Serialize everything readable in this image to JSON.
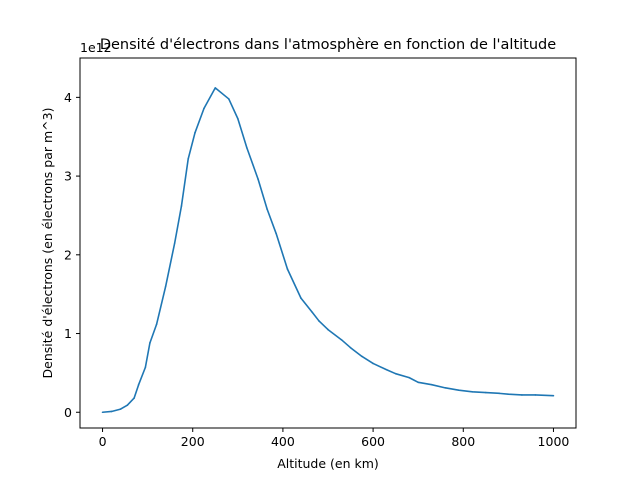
{
  "chart_data": {
    "type": "line",
    "title": "Densité d'électrons dans l'atmosphère en fonction de l'altitude",
    "xlabel": "Altitude (en km)",
    "ylabel": "Densité d'électrons (en électrons par m^3)",
    "y_offset_label": "1e12",
    "xlim": [
      -50,
      1050
    ],
    "ylim": [
      -0.2,
      4.5
    ],
    "y_scale_note": "values in units of 1e12",
    "x_ticks": [
      0,
      200,
      400,
      600,
      800,
      1000
    ],
    "y_ticks": [
      0,
      1,
      2,
      3,
      4
    ],
    "grid": false,
    "legend": "none",
    "series": [
      {
        "color": "#1f77b4",
        "x": [
          0,
          20,
          40,
          55,
          70,
          80,
          95,
          105,
          120,
          140,
          160,
          175,
          190,
          205,
          225,
          250,
          280,
          300,
          320,
          345,
          365,
          385,
          410,
          440,
          465,
          480,
          500,
          530,
          550,
          575,
          600,
          630,
          650,
          680,
          700,
          730,
          760,
          790,
          820,
          850,
          880,
          900,
          930,
          960,
          1000
        ],
        "y": [
          0.0,
          0.01,
          0.04,
          0.09,
          0.18,
          0.35,
          0.57,
          0.88,
          1.12,
          1.6,
          2.15,
          2.62,
          3.22,
          3.55,
          3.86,
          4.12,
          3.98,
          3.73,
          3.36,
          2.96,
          2.58,
          2.27,
          1.82,
          1.45,
          1.27,
          1.16,
          1.05,
          0.92,
          0.82,
          0.71,
          0.62,
          0.54,
          0.49,
          0.44,
          0.38,
          0.35,
          0.31,
          0.28,
          0.26,
          0.25,
          0.24,
          0.23,
          0.22,
          0.22,
          0.21
        ]
      }
    ]
  }
}
